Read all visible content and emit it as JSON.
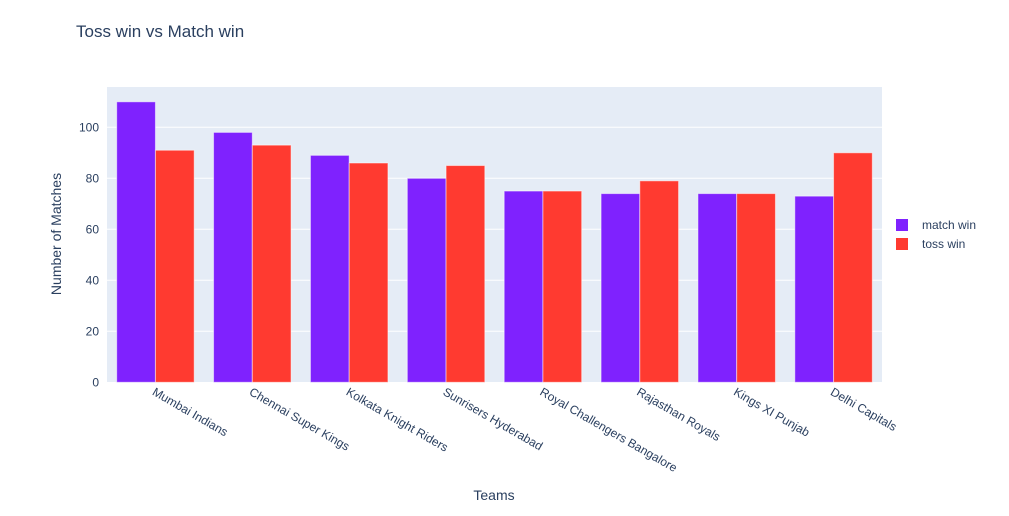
{
  "chart_data": {
    "type": "bar",
    "barmode": "group",
    "title": "Toss win vs Match win",
    "xlabel": "Teams",
    "ylabel": "Number of Matches",
    "ylim": [
      0,
      115.8
    ],
    "yticks": [
      0,
      20,
      40,
      60,
      80,
      100
    ],
    "grid": true,
    "legend": "right",
    "categories": [
      "Mumbai Indians",
      "Chennai Super Kings",
      "Kolkata Knight Riders",
      "Sunrisers Hyderabad",
      "Royal Challengers Bangalore",
      "Rajasthan Royals",
      "Kings XI Punjab",
      "Delhi Capitals"
    ],
    "series": [
      {
        "name": "match win",
        "color": "#7f22fe",
        "values": [
          110,
          98,
          89,
          80,
          75,
          74,
          74,
          73
        ]
      },
      {
        "name": "toss win",
        "color": "#ff3a30",
        "values": [
          91,
          93,
          86,
          85,
          75,
          79,
          74,
          90
        ]
      }
    ]
  }
}
